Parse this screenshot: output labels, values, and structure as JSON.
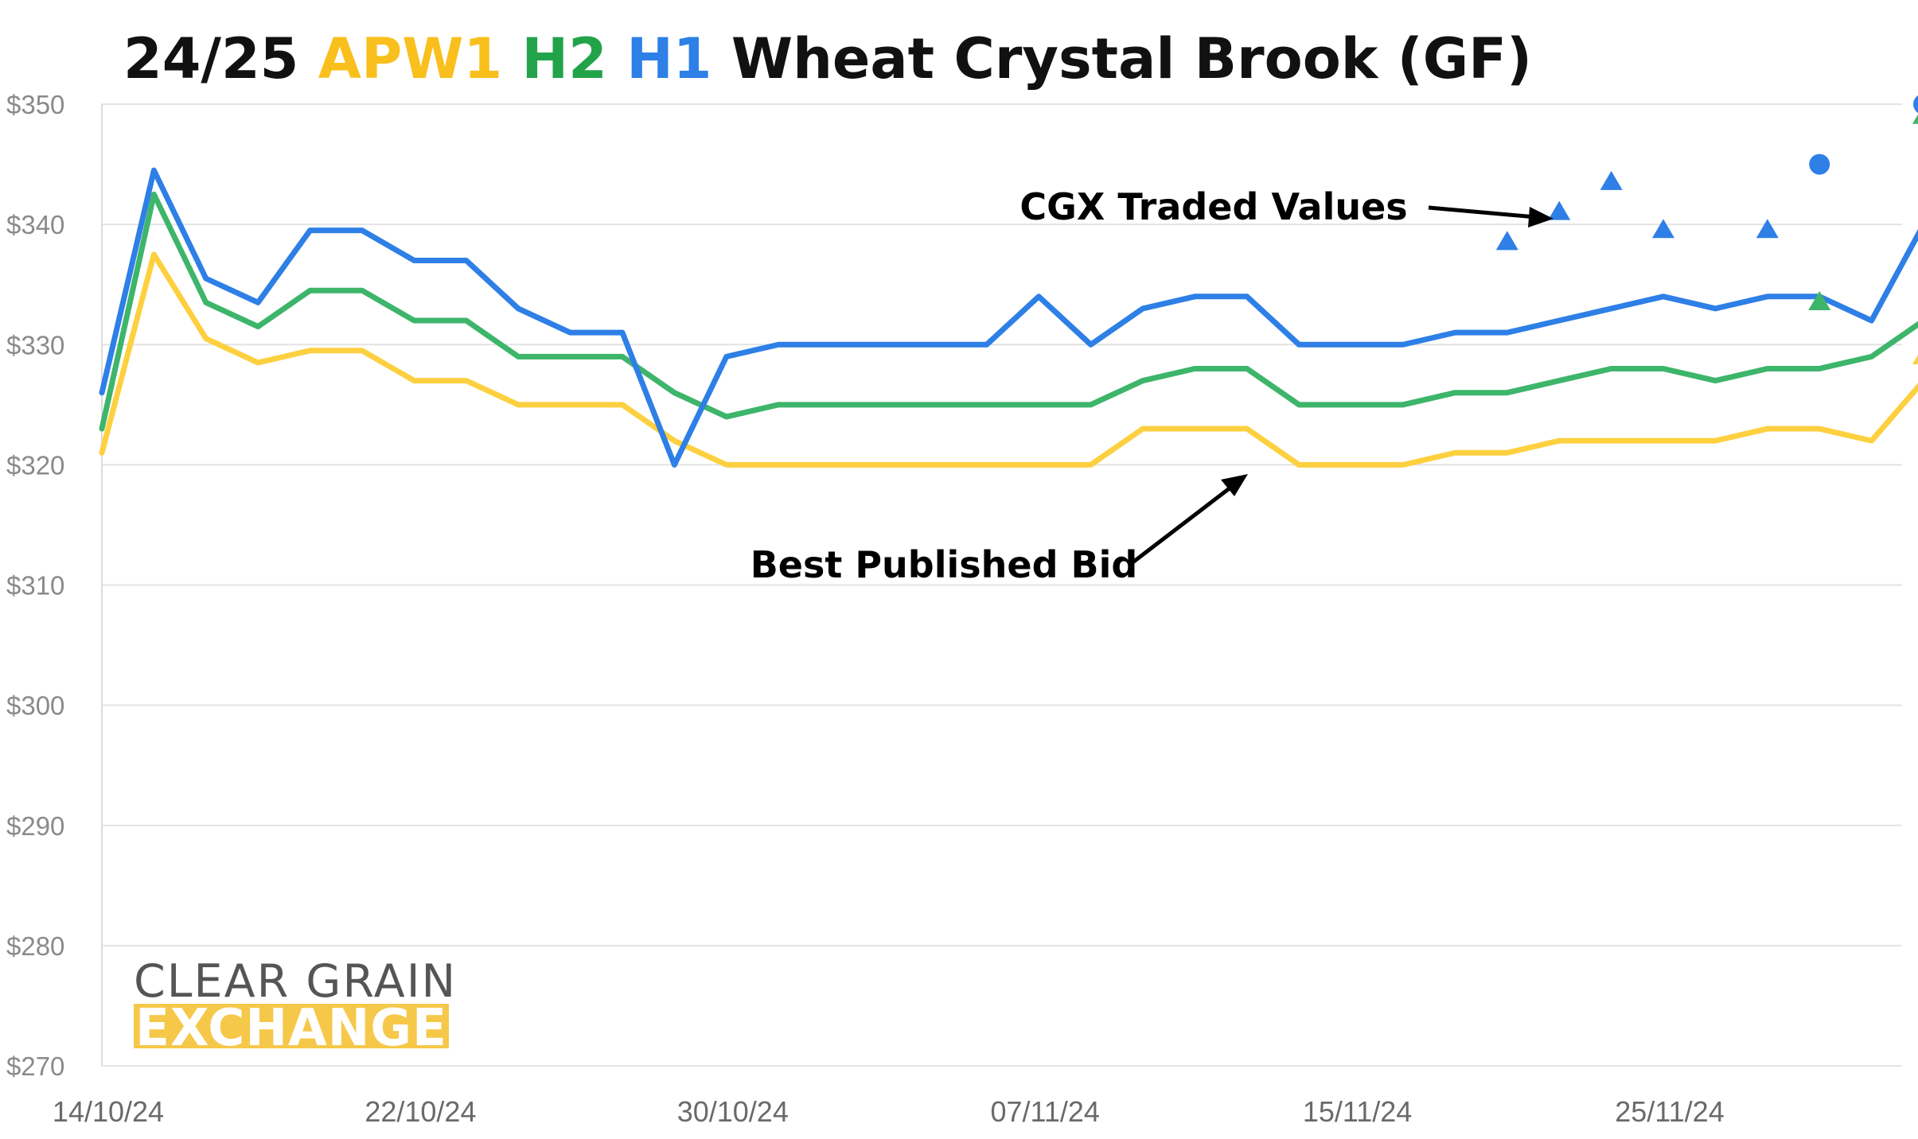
{
  "chart_data": {
    "type": "line",
    "title": {
      "prefix": "24/25 ",
      "part_apw1": "APW1",
      "part_h2": "H2",
      "part_h1": "H1",
      "suffix": "Wheat Crystal Brook (GF)"
    },
    "xlabel": "",
    "ylabel": "",
    "ylim": [
      270,
      350
    ],
    "y_ticks": [
      350,
      340,
      330,
      320,
      310,
      300,
      290,
      280,
      270
    ],
    "y_tick_labels": [
      "$350",
      "$340",
      "$330",
      "$320",
      "$310",
      "$300",
      "$290",
      "$280",
      "$270"
    ],
    "x_tick_labels": [
      {
        "label": "14/10/24",
        "index": 0
      },
      {
        "label": "22/10/24",
        "index": 6
      },
      {
        "label": "30/10/24",
        "index": 12
      },
      {
        "label": "07/11/24",
        "index": 18
      },
      {
        "label": "15/11/24",
        "index": 24
      },
      {
        "label": "25/11/24",
        "index": 30
      }
    ],
    "grid": true,
    "series": [
      {
        "name": "APW1",
        "color": "#fdd040",
        "values": [
          321,
          337.5,
          330.5,
          328.5,
          329.5,
          329.5,
          327,
          327,
          325,
          325,
          325,
          322,
          320,
          320,
          320,
          320,
          320,
          320,
          320,
          320,
          323,
          323,
          323,
          320,
          320,
          320,
          321,
          321,
          322,
          322,
          322,
          322,
          323,
          323,
          322,
          327
        ]
      },
      {
        "name": "H2",
        "color": "#3db56a",
        "values": [
          323,
          342.5,
          333.5,
          331.5,
          334.5,
          334.5,
          332,
          332,
          329,
          329,
          329,
          326,
          324,
          325,
          325,
          325,
          325,
          325,
          325,
          325,
          327,
          328,
          328,
          325,
          325,
          325,
          326,
          326,
          327,
          328,
          328,
          327,
          328,
          328,
          329,
          332
        ]
      },
      {
        "name": "H1",
        "color": "#2e7fe6",
        "values": [
          326,
          344.5,
          335.5,
          333.5,
          339.5,
          339.5,
          337,
          337,
          333,
          331,
          331,
          320,
          329,
          330,
          330,
          330,
          330,
          330,
          334,
          330,
          333,
          334,
          334,
          330,
          330,
          330,
          331,
          331,
          332,
          333,
          334,
          333,
          334,
          334,
          332,
          340
        ]
      }
    ],
    "traded_values": [
      {
        "series": "H1",
        "marker": "triangle",
        "index": 27,
        "value": 338.5
      },
      {
        "series": "H1",
        "marker": "triangle",
        "index": 28,
        "value": 341
      },
      {
        "series": "H1",
        "marker": "triangle",
        "index": 29,
        "value": 343.5
      },
      {
        "series": "H1",
        "marker": "triangle",
        "index": 30,
        "value": 339.5
      },
      {
        "series": "H1",
        "marker": "triangle",
        "index": 32,
        "value": 339.5
      },
      {
        "series": "H1",
        "marker": "circle",
        "index": 33,
        "value": 345
      },
      {
        "series": "H2",
        "marker": "triangle",
        "index": 33,
        "value": 333.5
      },
      {
        "series": "H1",
        "marker": "circle",
        "index": 35,
        "value": 350
      },
      {
        "series": "H2",
        "marker": "triangle",
        "index": 35,
        "value": 349
      },
      {
        "series": "APW1",
        "marker": "triangle",
        "index": 35,
        "value": 329
      }
    ],
    "annotations": [
      {
        "text": "CGX Traded Values",
        "points_to": "traded_values"
      },
      {
        "text": "Best Published Bid",
        "points_to": "series_lines"
      }
    ]
  },
  "logo": {
    "line1": "CLEAR GRAIN",
    "line2": "EXCHANGE",
    "line2_bg": "#f6c84a"
  },
  "colors": {
    "apw1": "#fdd040",
    "h2": "#3db56a",
    "h1": "#2e7fe6",
    "grid": "#e3e3e3",
    "title_text": "#111111"
  }
}
